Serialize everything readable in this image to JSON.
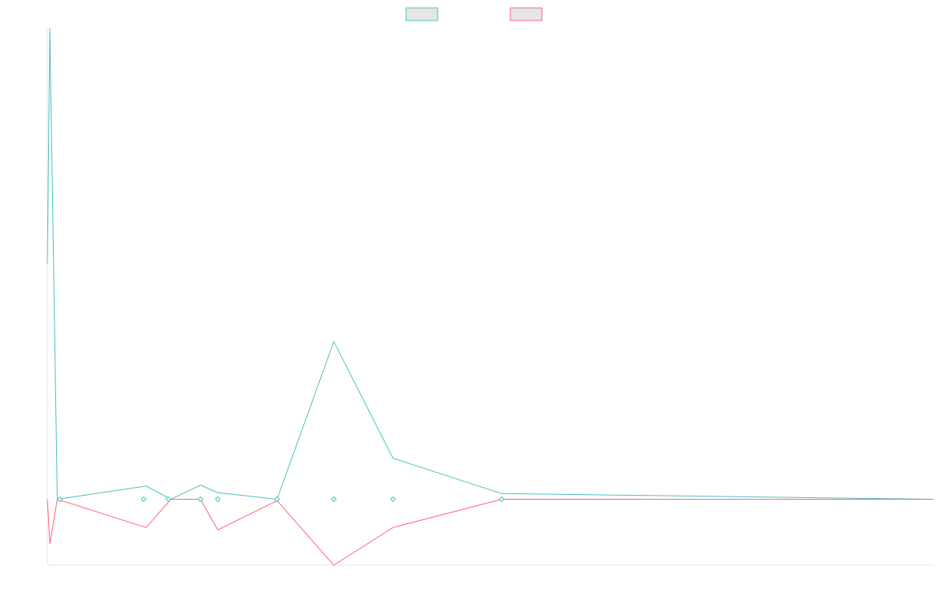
{
  "chart_data": {
    "type": "line",
    "title": "",
    "xlabel": "",
    "ylabel": "",
    "grid": false,
    "legend": {
      "position": "top-center"
    },
    "x": [
      0,
      1,
      4,
      40,
      50,
      62,
      69,
      93,
      116,
      140,
      184,
      359
    ],
    "xlim": [
      0,
      359
    ],
    "ylim": [
      -0.14,
      1.0
    ],
    "series": [
      {
        "name": "",
        "color": "#4bc0c0",
        "swatch_fill": "#e6e6e6",
        "values": [
          0.5,
          1.0,
          0.0,
          0.028,
          0.0,
          0.03,
          0.014,
          0.0,
          0.335,
          0.087,
          0.012,
          0.0
        ]
      },
      {
        "name": "",
        "color": "#ff6384",
        "swatch_fill": "#e6e6e6",
        "values": [
          0.0,
          -0.095,
          0.0,
          -0.06,
          0.0,
          0.0,
          -0.065,
          -0.003,
          -0.14,
          -0.06,
          0.0,
          0.0
        ]
      }
    ],
    "markers": [
      {
        "x": 5,
        "y": 0.0
      },
      {
        "x": 39,
        "y": 0.0
      },
      {
        "x": 49,
        "y": 0.0
      },
      {
        "x": 62,
        "y": 0.0
      },
      {
        "x": 69,
        "y": 0.0
      },
      {
        "x": 93,
        "y": 0.0
      },
      {
        "x": 116,
        "y": 0.0
      },
      {
        "x": 140,
        "y": 0.0
      },
      {
        "x": 184,
        "y": 0.0
      }
    ]
  }
}
